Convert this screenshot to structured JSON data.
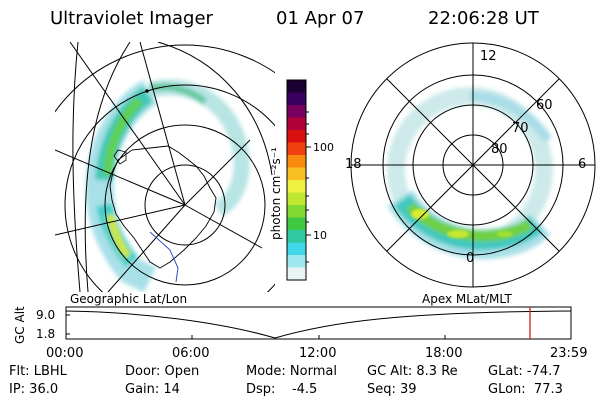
{
  "header": {
    "title": "Ultraviolet Imager",
    "date": "01 Apr 07",
    "time": "22:06:28 UT"
  },
  "colorbar": {
    "unit": "photon cm⁻²s⁻¹",
    "ticks": [
      "100",
      "10"
    ],
    "colors": [
      "#1a0030",
      "#3a0060",
      "#7a0060",
      "#b0003a",
      "#d81010",
      "#f04010",
      "#f88a10",
      "#f8c020",
      "#f0f040",
      "#c0e830",
      "#80d830",
      "#40c840",
      "#30c8a0",
      "#40d8e8",
      "#a0e8f0",
      "#e8f4f4"
    ]
  },
  "geo_map": {
    "label": "Geographic Lat/Lon"
  },
  "apex_map": {
    "label": "Apex MLat/MLT",
    "mlt_labels": {
      "top": "12",
      "left": "18",
      "right": "6",
      "bottom": "0"
    },
    "lat_labels": [
      "60",
      "70",
      "80"
    ]
  },
  "timeline": {
    "ylabel": "GC Alt",
    "yticks": [
      "9.0",
      "1.8"
    ],
    "xticks": [
      "00:00",
      "06:00",
      "12:00",
      "18:00",
      "23:59"
    ],
    "current_color": "#d02020"
  },
  "info": {
    "row1": {
      "filter": "Flt: LBHL",
      "door": "Door: Open",
      "mode": "Mode: Normal",
      "gc_alt": "GC Alt: 8.3 Re",
      "glat": "GLat: -74.7"
    },
    "row2": {
      "ip": "IP: 36.0",
      "gain": "Gain: 14",
      "dsp": "Dsp:    -4.5",
      "seq": "Seq: 39",
      "glon": "GLon:  77.3"
    }
  }
}
